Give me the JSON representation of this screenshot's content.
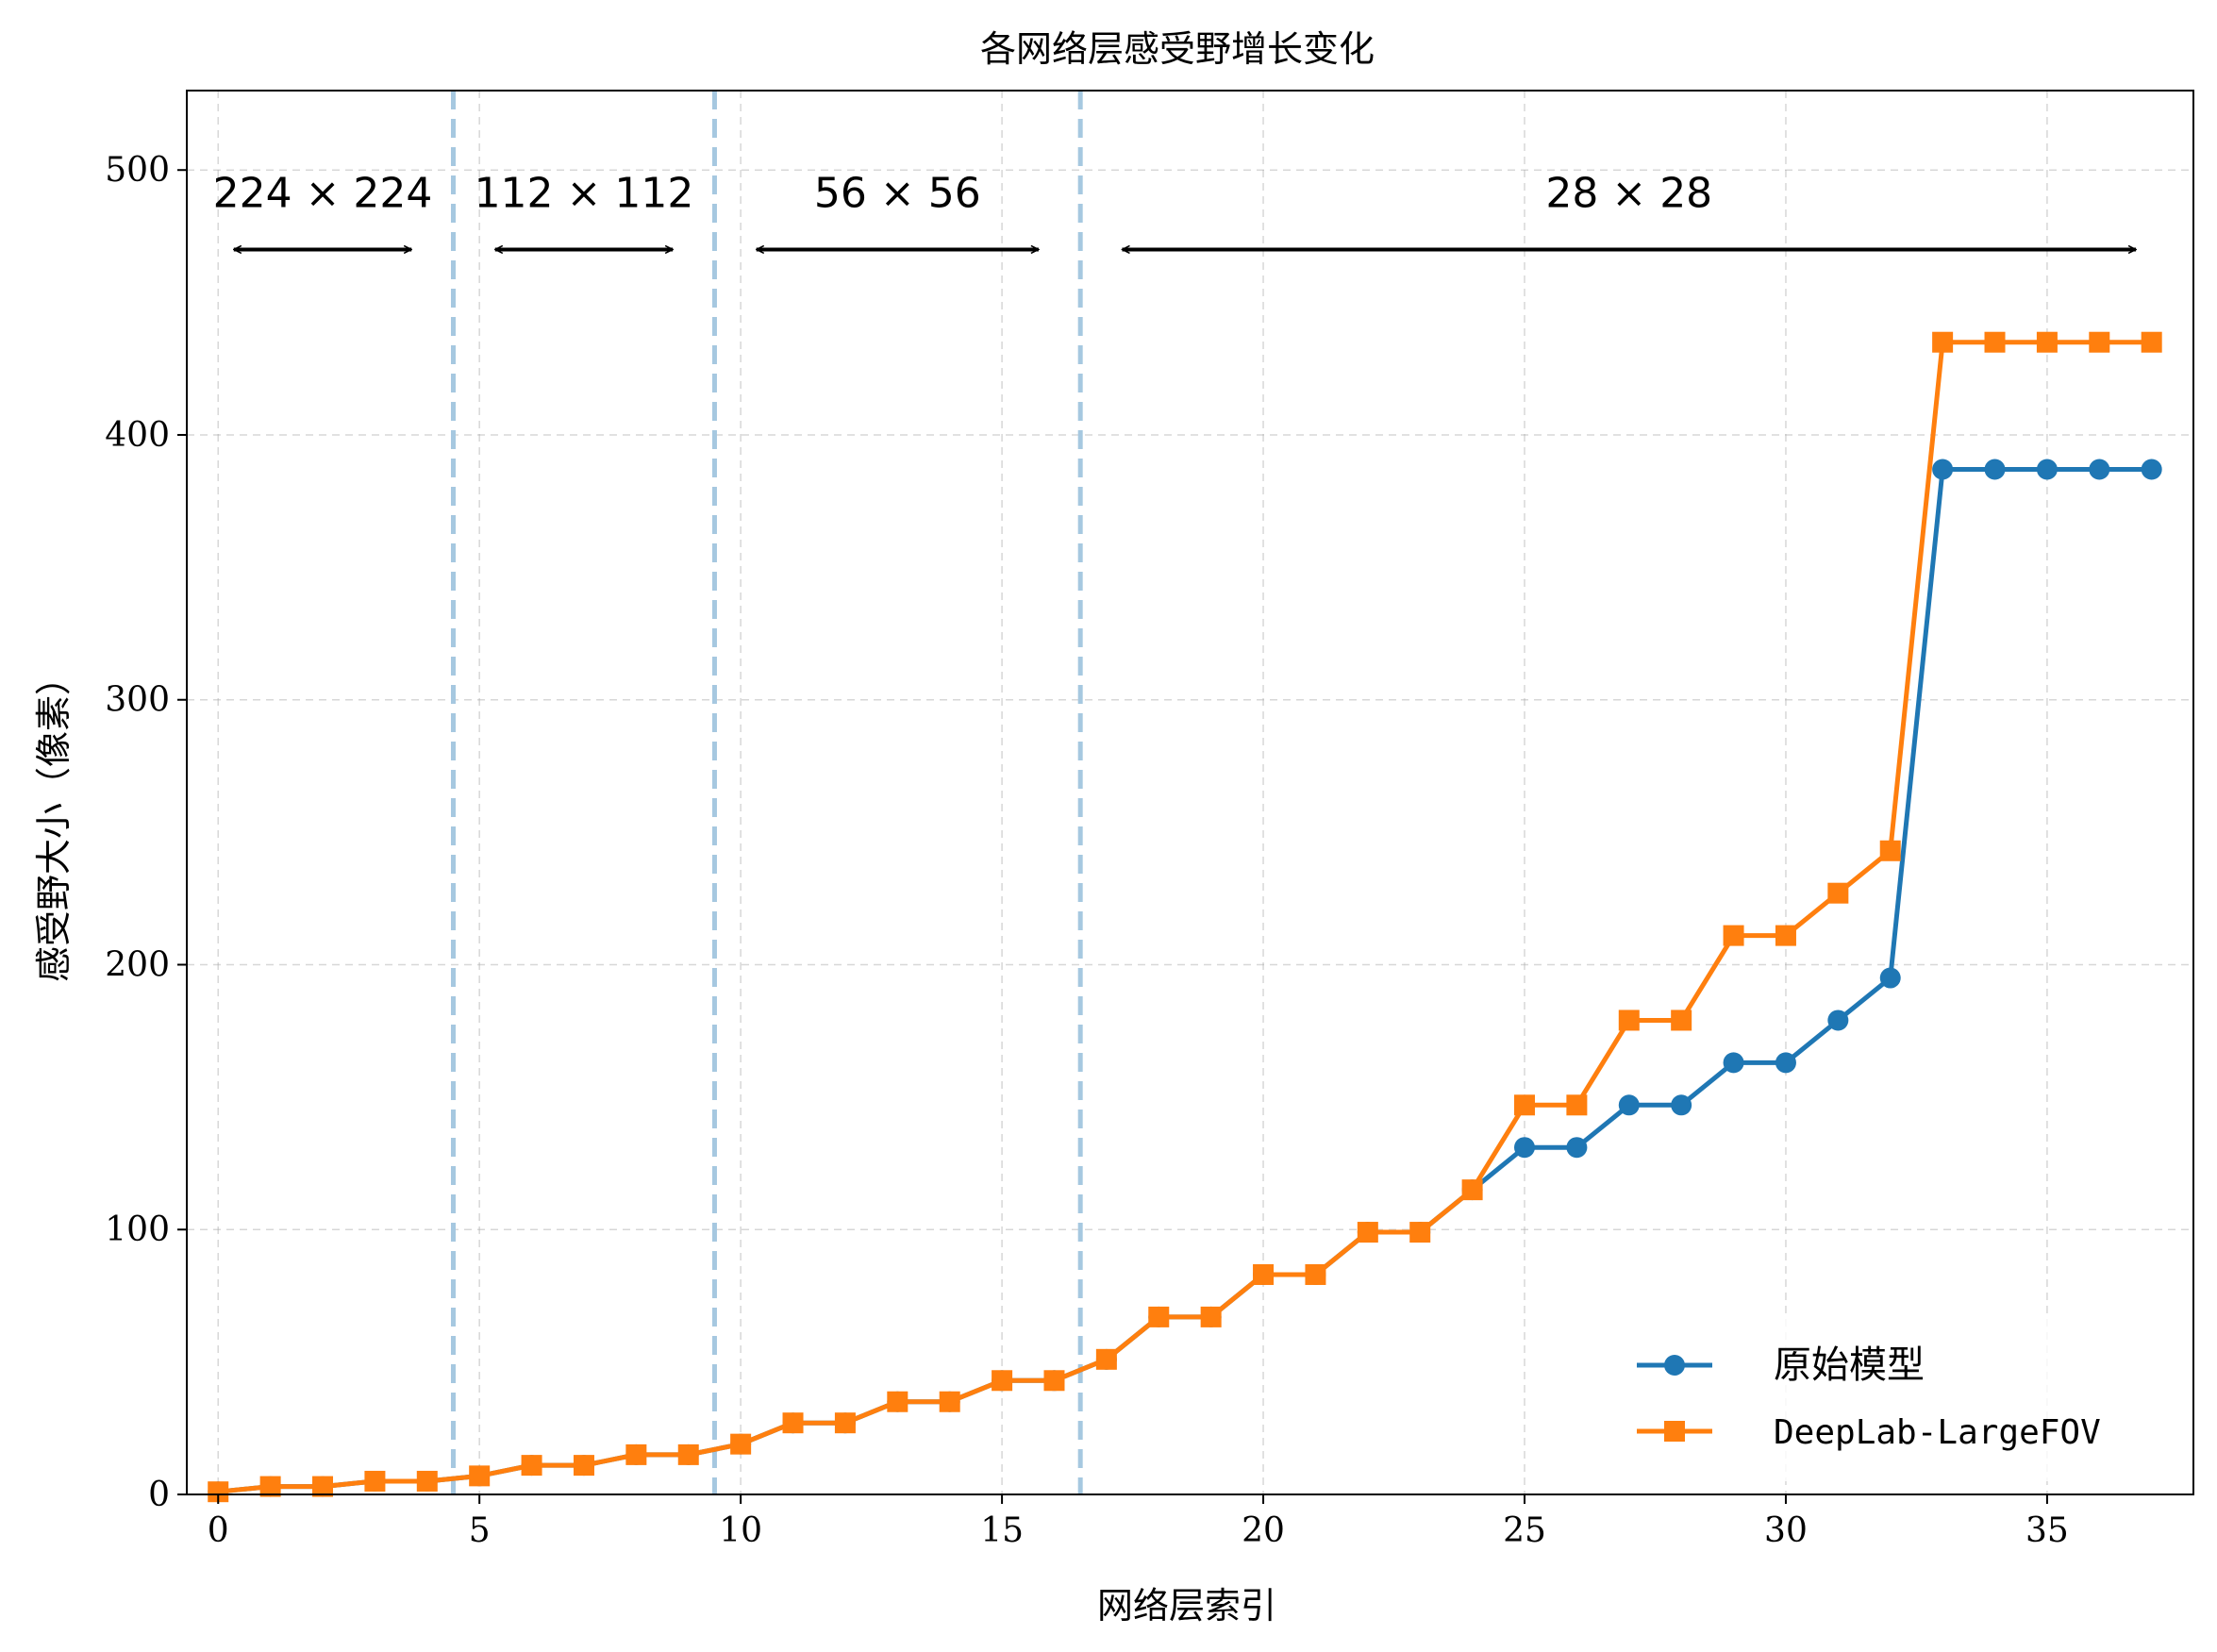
{
  "chart_data": {
    "type": "line",
    "title": "各网络层感受野增长变化",
    "xlabel": "网络层索引",
    "ylabel": "感受野大小（像素）",
    "xlim": [
      -0.6,
      37.8
    ],
    "ylim": [
      0,
      530
    ],
    "xticks": [
      0,
      5,
      10,
      15,
      20,
      25,
      30,
      35
    ],
    "yticks": [
      0,
      100,
      200,
      300,
      400,
      500
    ],
    "grid": true,
    "legend_position": "lower-right",
    "x": [
      0,
      1,
      2,
      3,
      4,
      5,
      6,
      7,
      8,
      9,
      10,
      11,
      12,
      13,
      14,
      15,
      16,
      17,
      18,
      19,
      20,
      21,
      22,
      23,
      24,
      25,
      26,
      27,
      28,
      29,
      30,
      31,
      32,
      33,
      34,
      35,
      36,
      37
    ],
    "series": [
      {
        "name": "原始模型",
        "color": "#1f77b4",
        "marker": "circle",
        "values": [
          1,
          3,
          3,
          5,
          5,
          7,
          11,
          11,
          15,
          15,
          19,
          27,
          27,
          35,
          35,
          43,
          43,
          51,
          67,
          67,
          83,
          83,
          99,
          99,
          115,
          131,
          131,
          147,
          147,
          163,
          163,
          179,
          195,
          387,
          387,
          387,
          387,
          387
        ]
      },
      {
        "name": "DeepLab-LargeFOV",
        "color": "#ff7f0e",
        "marker": "square",
        "values": [
          1,
          3,
          3,
          5,
          5,
          7,
          11,
          11,
          15,
          15,
          19,
          27,
          27,
          35,
          35,
          43,
          43,
          51,
          67,
          67,
          83,
          83,
          99,
          99,
          115,
          147,
          147,
          179,
          179,
          211,
          211,
          227,
          243,
          435,
          435,
          435,
          435,
          435
        ]
      }
    ],
    "stage_boundaries": [
      4.5,
      9.5,
      16.5
    ],
    "boundary_color": "#a6c8e0",
    "annotations": [
      {
        "label": "224 × 224",
        "x_start": 0.3,
        "x_end": 3.7,
        "y_arrow": 470,
        "y_text": 491
      },
      {
        "label": "112 × 112",
        "x_start": 5.3,
        "x_end": 8.7,
        "y_arrow": 470,
        "y_text": 491
      },
      {
        "label": "56 × 56",
        "x_start": 10.3,
        "x_end": 15.7,
        "y_arrow": 470,
        "y_text": 491
      },
      {
        "label": "28 × 28",
        "x_start": 17.3,
        "x_end": 36.7,
        "y_arrow": 470,
        "y_text": 491
      }
    ]
  }
}
